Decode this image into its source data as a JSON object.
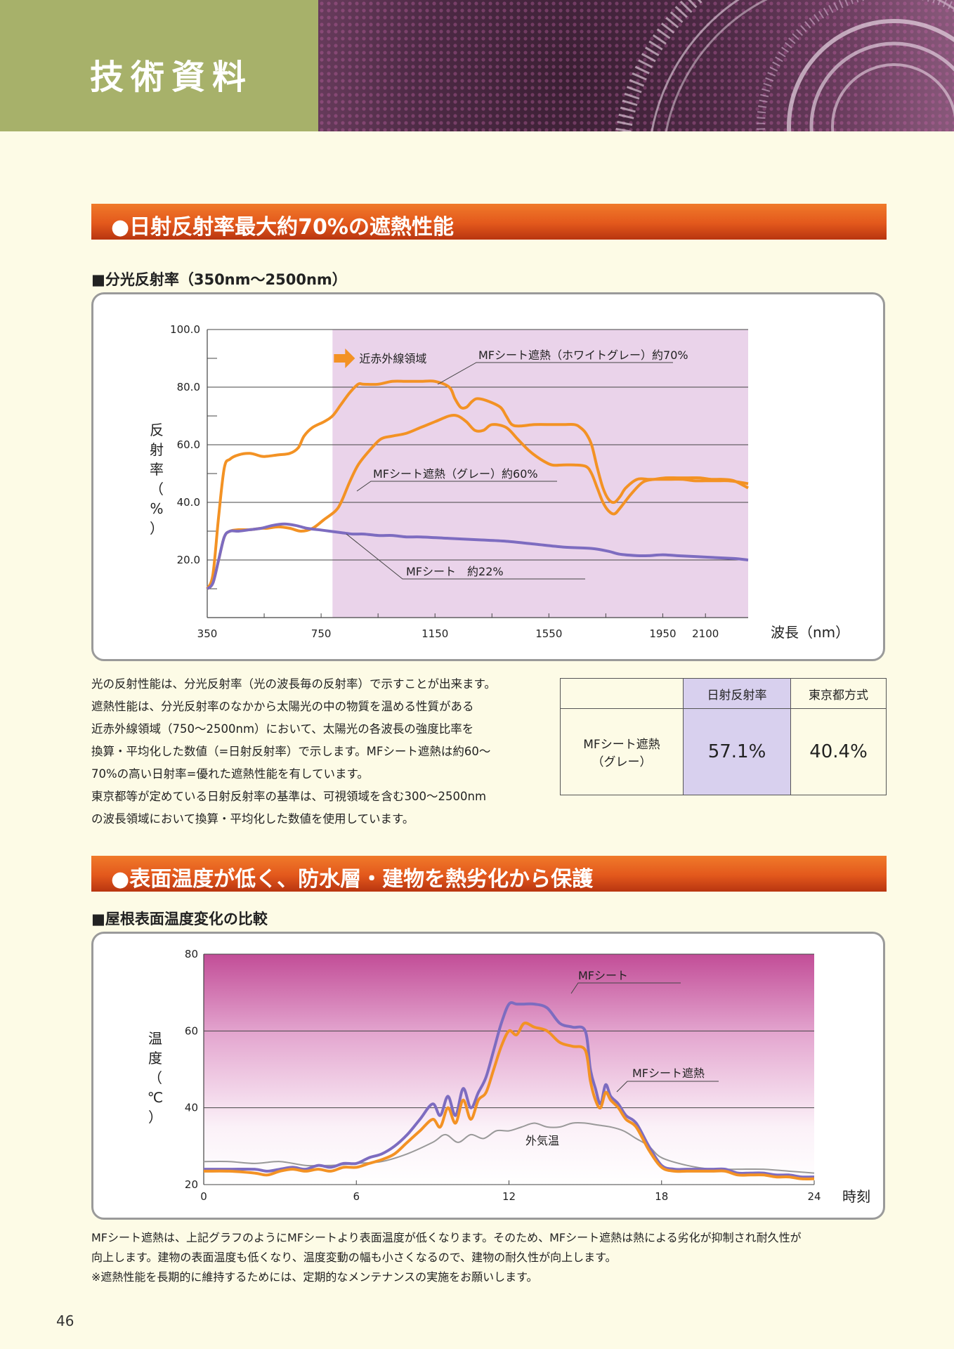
{
  "header": {
    "title": "技術資料"
  },
  "section1": {
    "title": "●日射反射率最大約70%の遮熱性能",
    "chart_heading": "■分光反射率（350nm〜2500nm）"
  },
  "section2": {
    "title": "●表面温度が低く、防水層・建物を熱劣化から保護",
    "chart_heading": "■屋根表面温度変化の比較"
  },
  "paragraph1": [
    "光の反射性能は、分光反射率（光の波長毎の反射率）で示すことが出来ます。",
    "遮熱性能は、分光反射率のなかから太陽光の中の物質を温める性質がある",
    "近赤外線領域（750〜2500nm）において、太陽光の各波長の強度比率を",
    "換算・平均化した数値（=日射反射率）で示します。MFシート遮熱は約60〜",
    "70%の高い日射率=優れた遮熱性能を有しています。",
    "東京都等が定めている日射反射率の基準は、可視領域を含む300〜2500nm",
    "の波長領域において換算・平均化した数値を使用しています。"
  ],
  "table": {
    "headers": [
      "",
      "日射反射率",
      "東京都方式"
    ],
    "row_label_1": "MFシート遮熱",
    "row_label_2": "（グレー）",
    "value_1": "57.1%",
    "value_2": "40.4%"
  },
  "paragraph2": [
    "MFシート遮熱は、上記グラフのようにMFシートより表面温度が低くなります。そのため、MFシート遮熱は熱による劣化が抑制され耐久性が",
    "向上します。建物の表面温度も低くなり、温度変動の幅も小さくなるので、建物の耐久性が向上します。",
    "※遮熱性能を長期的に維持するためには、定期的なメンテナンスの実施をお願いします。"
  ],
  "page_number": "46",
  "colors": {
    "orange": "#f39224",
    "purple": "#7d6cc0",
    "gray": "#999999",
    "nir_band": "#ead3ea",
    "section_bar": "#e3581c",
    "header_green": "#a7b16a"
  },
  "chart_data": [
    {
      "type": "line",
      "ylabel": "反射率（%）",
      "xlabel": "波長（nm）",
      "xlim": [
        350,
        2250
      ],
      "ylim": [
        0,
        100
      ],
      "x_ticks": [
        350,
        750,
        1150,
        1550,
        1950,
        2100
      ],
      "y_ticks": [
        20.0,
        40.0,
        60.0,
        80.0,
        100.0
      ],
      "y_tick_labels": [
        "20.0",
        "40.0",
        "60.0",
        "80.0",
        "100.0"
      ],
      "band": {
        "from": 790,
        "to": 2250,
        "label": "近赤外線領域"
      },
      "series": [
        {
          "name": "MFシート遮熱（ホワイトグレー）約70%",
          "color": "#f39224",
          "x": [
            350,
            370,
            390,
            410,
            430,
            460,
            500,
            540,
            560,
            600,
            640,
            670,
            690,
            720,
            760,
            790,
            820,
            850,
            880,
            900,
            950,
            1000,
            1050,
            1100,
            1150,
            1200,
            1220,
            1240,
            1260,
            1280,
            1300,
            1340,
            1380,
            1400,
            1420,
            1450,
            1500,
            1560,
            1600,
            1640,
            1660,
            1680,
            1700,
            1720,
            1740,
            1760,
            1780,
            1800,
            1820,
            1860,
            1900,
            1940,
            1980,
            2020,
            2060,
            2100,
            2140,
            2180,
            2220,
            2250
          ],
          "y": [
            10,
            15,
            35,
            52,
            55,
            56.5,
            57,
            56,
            56,
            56.5,
            57,
            59,
            63,
            66,
            68,
            70,
            74,
            78,
            81,
            81,
            81,
            82,
            82,
            82,
            82,
            80,
            76,
            73,
            73,
            75,
            76,
            75,
            73,
            70,
            67,
            66.5,
            67,
            67,
            67,
            67,
            66,
            64,
            60,
            52,
            45,
            41,
            40,
            42,
            45,
            48,
            48,
            48,
            48,
            48,
            47.5,
            47.5,
            47.5,
            47.5,
            47,
            46.5
          ],
          "line_label": "MFシート遮熱（ホワイトグレー）約70%"
        },
        {
          "name": "MFシート遮熱（グレー）約60%",
          "color": "#f39224",
          "x": [
            350,
            370,
            390,
            410,
            430,
            460,
            500,
            540,
            560,
            600,
            640,
            680,
            720,
            760,
            800,
            820,
            850,
            880,
            920,
            960,
            1000,
            1050,
            1100,
            1150,
            1200,
            1230,
            1260,
            1290,
            1320,
            1350,
            1400,
            1440,
            1480,
            1520,
            1560,
            1600,
            1640,
            1680,
            1700,
            1720,
            1740,
            1760,
            1780,
            1800,
            1840,
            1880,
            1920,
            1960,
            2000,
            2040,
            2080,
            2120,
            2160,
            2200,
            2250
          ],
          "y": [
            10,
            12,
            20,
            28,
            30,
            30.5,
            30.5,
            31,
            31,
            31.5,
            31,
            30,
            31,
            34,
            37,
            40,
            47,
            53,
            58,
            62,
            63,
            64,
            66,
            68,
            70,
            70,
            68,
            65,
            65,
            67,
            66,
            62,
            58,
            55,
            53,
            53,
            53,
            52.5,
            50,
            45,
            40,
            37,
            36,
            38,
            43,
            47,
            48,
            48.5,
            48.5,
            48.5,
            48.5,
            48,
            48,
            47.5,
            45
          ],
          "line_label": "MFシート遮熱（グレー）約60%"
        },
        {
          "name": "MFシート 約22%",
          "color": "#7d6cc0",
          "x": [
            350,
            370,
            390,
            410,
            430,
            460,
            500,
            540,
            580,
            620,
            660,
            700,
            740,
            780,
            820,
            860,
            900,
            950,
            1000,
            1050,
            1100,
            1200,
            1300,
            1400,
            1500,
            1600,
            1700,
            1760,
            1800,
            1860,
            1900,
            1950,
            2000,
            2100,
            2200,
            2250
          ],
          "y": [
            10,
            12,
            20,
            28,
            30,
            30,
            30.5,
            31,
            32,
            32.5,
            32,
            31,
            30.5,
            30,
            29.5,
            29,
            29,
            28.5,
            28.5,
            28,
            28,
            27.5,
            27,
            26.5,
            25.5,
            24.5,
            24,
            23,
            22,
            21.5,
            21.5,
            21.8,
            21.5,
            21,
            20.5,
            20
          ],
          "line_label": "MFシート　約22%"
        }
      ]
    },
    {
      "type": "line",
      "ylabel": "温度（℃）",
      "xlabel": "時刻",
      "xlim": [
        0,
        24
      ],
      "ylim": [
        20,
        80
      ],
      "x_ticks": [
        0,
        6,
        12,
        18,
        24
      ],
      "y_ticks": [
        20,
        40,
        60,
        80
      ],
      "series": [
        {
          "name": "MFシート",
          "color": "#7d6cc0",
          "x": [
            0,
            1,
            2,
            2.5,
            3,
            3.5,
            4,
            4.5,
            5,
            5.5,
            6,
            6.5,
            7,
            7.5,
            8,
            8.5,
            9,
            9.3,
            9.6,
            9.9,
            10.2,
            10.5,
            10.8,
            11.1,
            11.4,
            11.7,
            12,
            12.3,
            12.6,
            13,
            13.5,
            14,
            14.5,
            15,
            15.2,
            15.4,
            15.6,
            15.8,
            16,
            16.3,
            16.6,
            17,
            17.5,
            18,
            18.5,
            19,
            20,
            20.5,
            21,
            21.5,
            22,
            22.5,
            23,
            23.5,
            24
          ],
          "y": [
            24,
            24,
            24,
            23.5,
            24,
            24.5,
            24,
            25,
            24.5,
            25.5,
            25.5,
            27,
            28,
            30,
            33,
            37,
            41,
            38,
            43,
            38,
            45,
            40,
            44,
            48,
            55,
            62,
            67,
            67,
            67,
            67,
            66,
            62,
            61,
            60,
            50,
            45,
            41,
            46,
            43,
            41,
            38,
            36,
            30,
            25,
            24,
            24,
            24,
            24,
            23,
            23,
            23,
            22.5,
            22.5,
            22,
            22
          ],
          "line_label": "MFシート"
        },
        {
          "name": "MFシート遮熱",
          "color": "#f39224",
          "x": [
            0,
            1,
            2,
            2.5,
            3,
            3.5,
            4,
            4.5,
            5,
            5.5,
            6,
            6.5,
            7,
            7.5,
            8,
            8.5,
            9,
            9.3,
            9.6,
            9.9,
            10.2,
            10.5,
            10.8,
            11.1,
            11.4,
            11.7,
            12,
            12.3,
            12.6,
            13,
            13.5,
            14,
            14.5,
            15,
            15.2,
            15.4,
            15.6,
            15.8,
            16,
            16.3,
            16.6,
            17,
            17.5,
            18,
            18.5,
            19,
            20,
            20.5,
            21,
            21.5,
            22,
            22.5,
            23,
            23.5,
            24
          ],
          "y": [
            23.5,
            23.5,
            23,
            22.5,
            23.5,
            24,
            23.5,
            24,
            23.5,
            24.5,
            24.5,
            25.5,
            26.5,
            28,
            31,
            34,
            37,
            35,
            40,
            36,
            42,
            37,
            42,
            44,
            50,
            56,
            60,
            59,
            62,
            61,
            60,
            57,
            56,
            55,
            47,
            42,
            40,
            44,
            42,
            40,
            37,
            35,
            29,
            24.5,
            23.5,
            23.5,
            23.5,
            23.5,
            22.5,
            22.5,
            22.5,
            22,
            22,
            21.5,
            21.5
          ],
          "line_label": "MFシート遮熱"
        },
        {
          "name": "外気温",
          "color": "#999999",
          "x": [
            0,
            1,
            2,
            3,
            4,
            5,
            6,
            7,
            8,
            9,
            9.5,
            10,
            10.5,
            11,
            11.5,
            12,
            12.5,
            13,
            13.5,
            14,
            14.5,
            15,
            15.5,
            16,
            16.5,
            17,
            17.5,
            18,
            19,
            20,
            21,
            22,
            23,
            24
          ],
          "y": [
            26,
            26,
            25.5,
            26,
            25,
            25,
            25.5,
            26,
            28,
            31,
            33,
            31,
            33,
            32,
            34,
            34,
            35,
            36,
            35,
            35,
            36,
            36,
            35.5,
            35,
            34,
            32,
            30,
            27,
            25,
            24,
            24,
            24,
            23.5,
            23
          ],
          "line_label": "外気温"
        }
      ]
    }
  ]
}
